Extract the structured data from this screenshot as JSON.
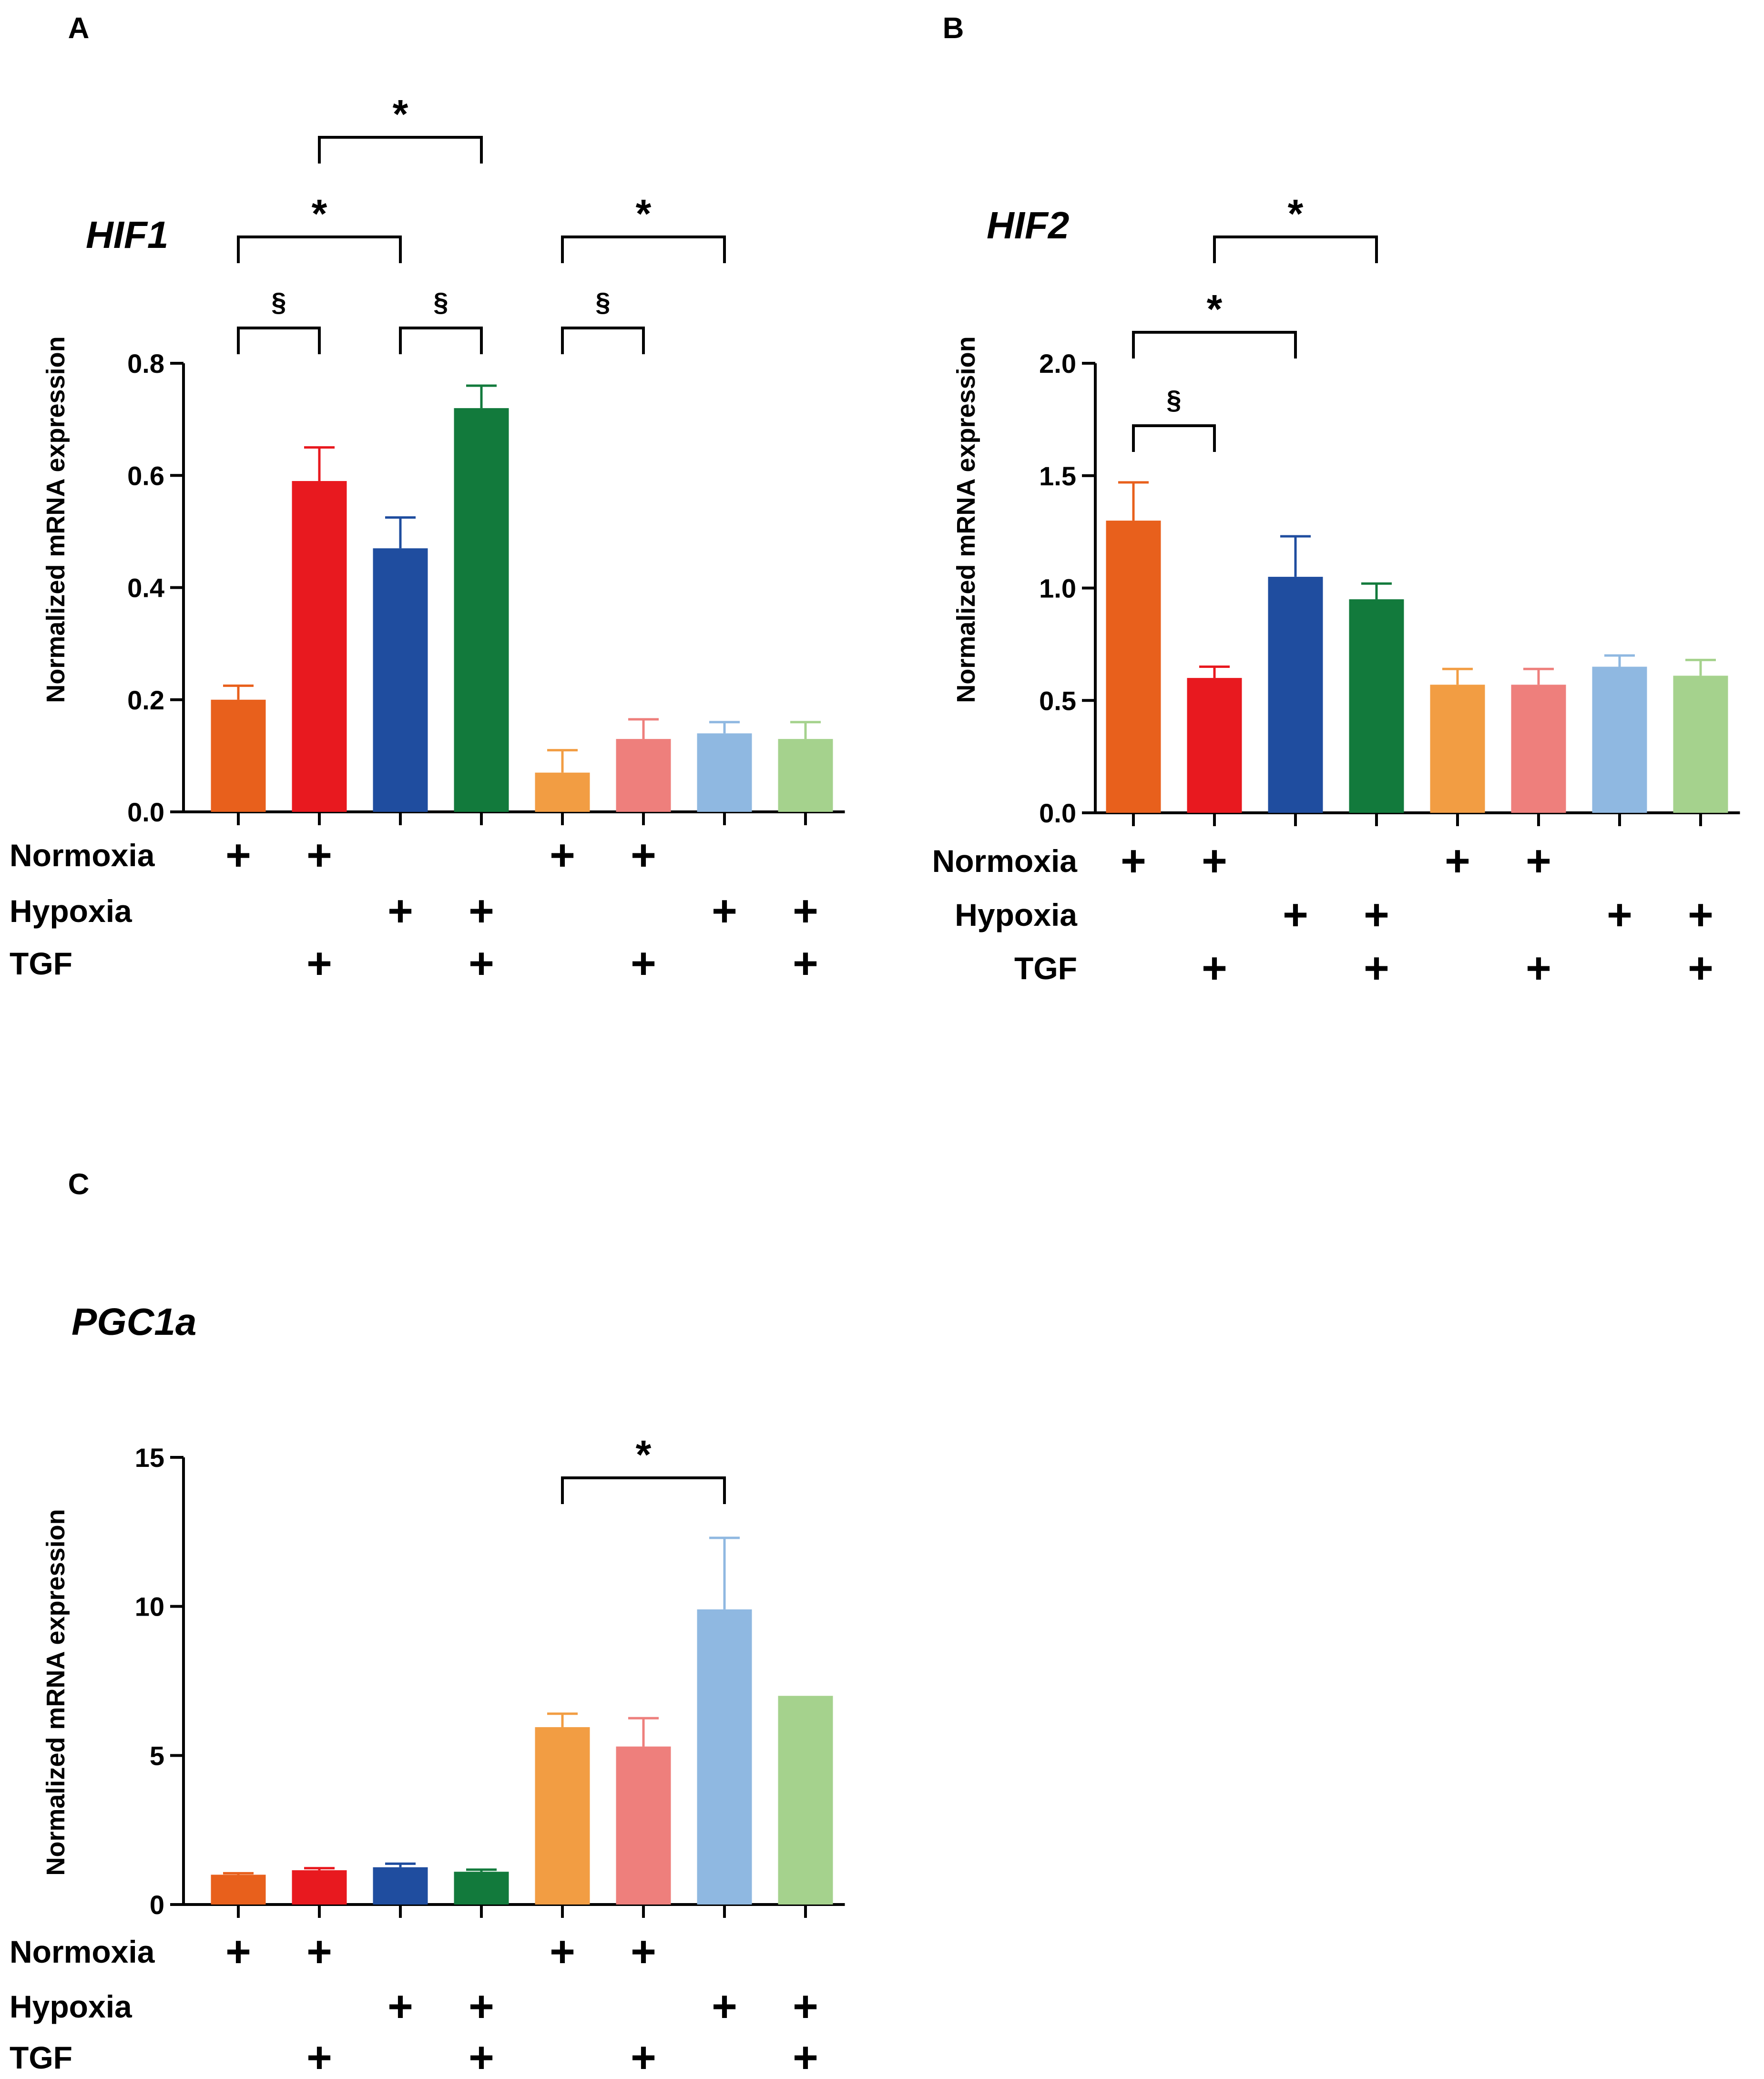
{
  "colors": [
    "#e8601c",
    "#e8191f",
    "#1f4d9f",
    "#127a3c",
    "#f29d43",
    "#ee7f7c",
    "#8fb8e1",
    "#a5d28d"
  ],
  "row_labels": [
    "Normoxia",
    "Hypoxia",
    "TGF"
  ],
  "plus_symbol": "+",
  "conditions": [
    {
      "normoxia": true,
      "hypoxia": false,
      "tgf": false
    },
    {
      "normoxia": true,
      "hypoxia": false,
      "tgf": true
    },
    {
      "normoxia": false,
      "hypoxia": true,
      "tgf": false
    },
    {
      "normoxia": false,
      "hypoxia": true,
      "tgf": true
    },
    {
      "normoxia": true,
      "hypoxia": false,
      "tgf": false
    },
    {
      "normoxia": true,
      "hypoxia": false,
      "tgf": true
    },
    {
      "normoxia": false,
      "hypoxia": true,
      "tgf": false
    },
    {
      "normoxia": false,
      "hypoxia": true,
      "tgf": true
    }
  ],
  "chart_data": [
    {
      "panel": "A",
      "title": "HIF1",
      "type": "bar",
      "ylabel": "Normalized mRNA expression",
      "ylim": [
        0,
        0.8
      ],
      "yticks": [
        "0.0",
        "0.2",
        "0.4",
        "0.6",
        "0.8"
      ],
      "ytick_values": [
        0,
        0.2,
        0.4,
        0.6,
        0.8
      ],
      "values": [
        0.2,
        0.59,
        0.47,
        0.72,
        0.07,
        0.13,
        0.14,
        0.13
      ],
      "errors": [
        0.025,
        0.06,
        0.055,
        0.04,
        0.04,
        0.035,
        0.02,
        0.03
      ],
      "significance": [
        {
          "from": 2,
          "to": 4,
          "label": "*"
        },
        {
          "from": 1,
          "to": 3,
          "label": "*"
        },
        {
          "from": 5,
          "to": 7,
          "label": "*"
        },
        {
          "from": 1,
          "to": 2,
          "label": "§"
        },
        {
          "from": 3,
          "to": 4,
          "label": "§"
        },
        {
          "from": 5,
          "to": 6,
          "label": "§"
        }
      ]
    },
    {
      "panel": "B",
      "title": "HIF2",
      "type": "bar",
      "ylabel": "Normalized mRNA expression",
      "ylim": [
        0,
        2.0
      ],
      "yticks": [
        "0.0",
        "0.5",
        "1.0",
        "1.5",
        "2.0"
      ],
      "ytick_values": [
        0,
        0.5,
        1.0,
        1.5,
        2.0
      ],
      "values": [
        1.3,
        0.6,
        1.05,
        0.95,
        0.57,
        0.57,
        0.65,
        0.61
      ],
      "errors": [
        0.17,
        0.05,
        0.18,
        0.07,
        0.07,
        0.07,
        0.05,
        0.07
      ],
      "significance": [
        {
          "from": 2,
          "to": 4,
          "label": "*"
        },
        {
          "from": 1,
          "to": 3,
          "label": "*"
        },
        {
          "from": 1,
          "to": 2,
          "label": "§"
        }
      ]
    },
    {
      "panel": "C",
      "title": "PGC1a",
      "type": "bar",
      "ylabel": "Normalized mRNA expression",
      "ylim": [
        0,
        15
      ],
      "yticks": [
        "0",
        "5",
        "10",
        "15"
      ],
      "ytick_values": [
        0,
        5,
        10,
        15
      ],
      "values": [
        1.0,
        1.15,
        1.25,
        1.1,
        5.95,
        5.3,
        9.9,
        7.0
      ],
      "errors": [
        0.05,
        0.07,
        0.12,
        0.07,
        0.45,
        0.95,
        2.4,
        0
      ],
      "significance": [
        {
          "from": 5,
          "to": 7,
          "label": "*"
        }
      ]
    }
  ]
}
